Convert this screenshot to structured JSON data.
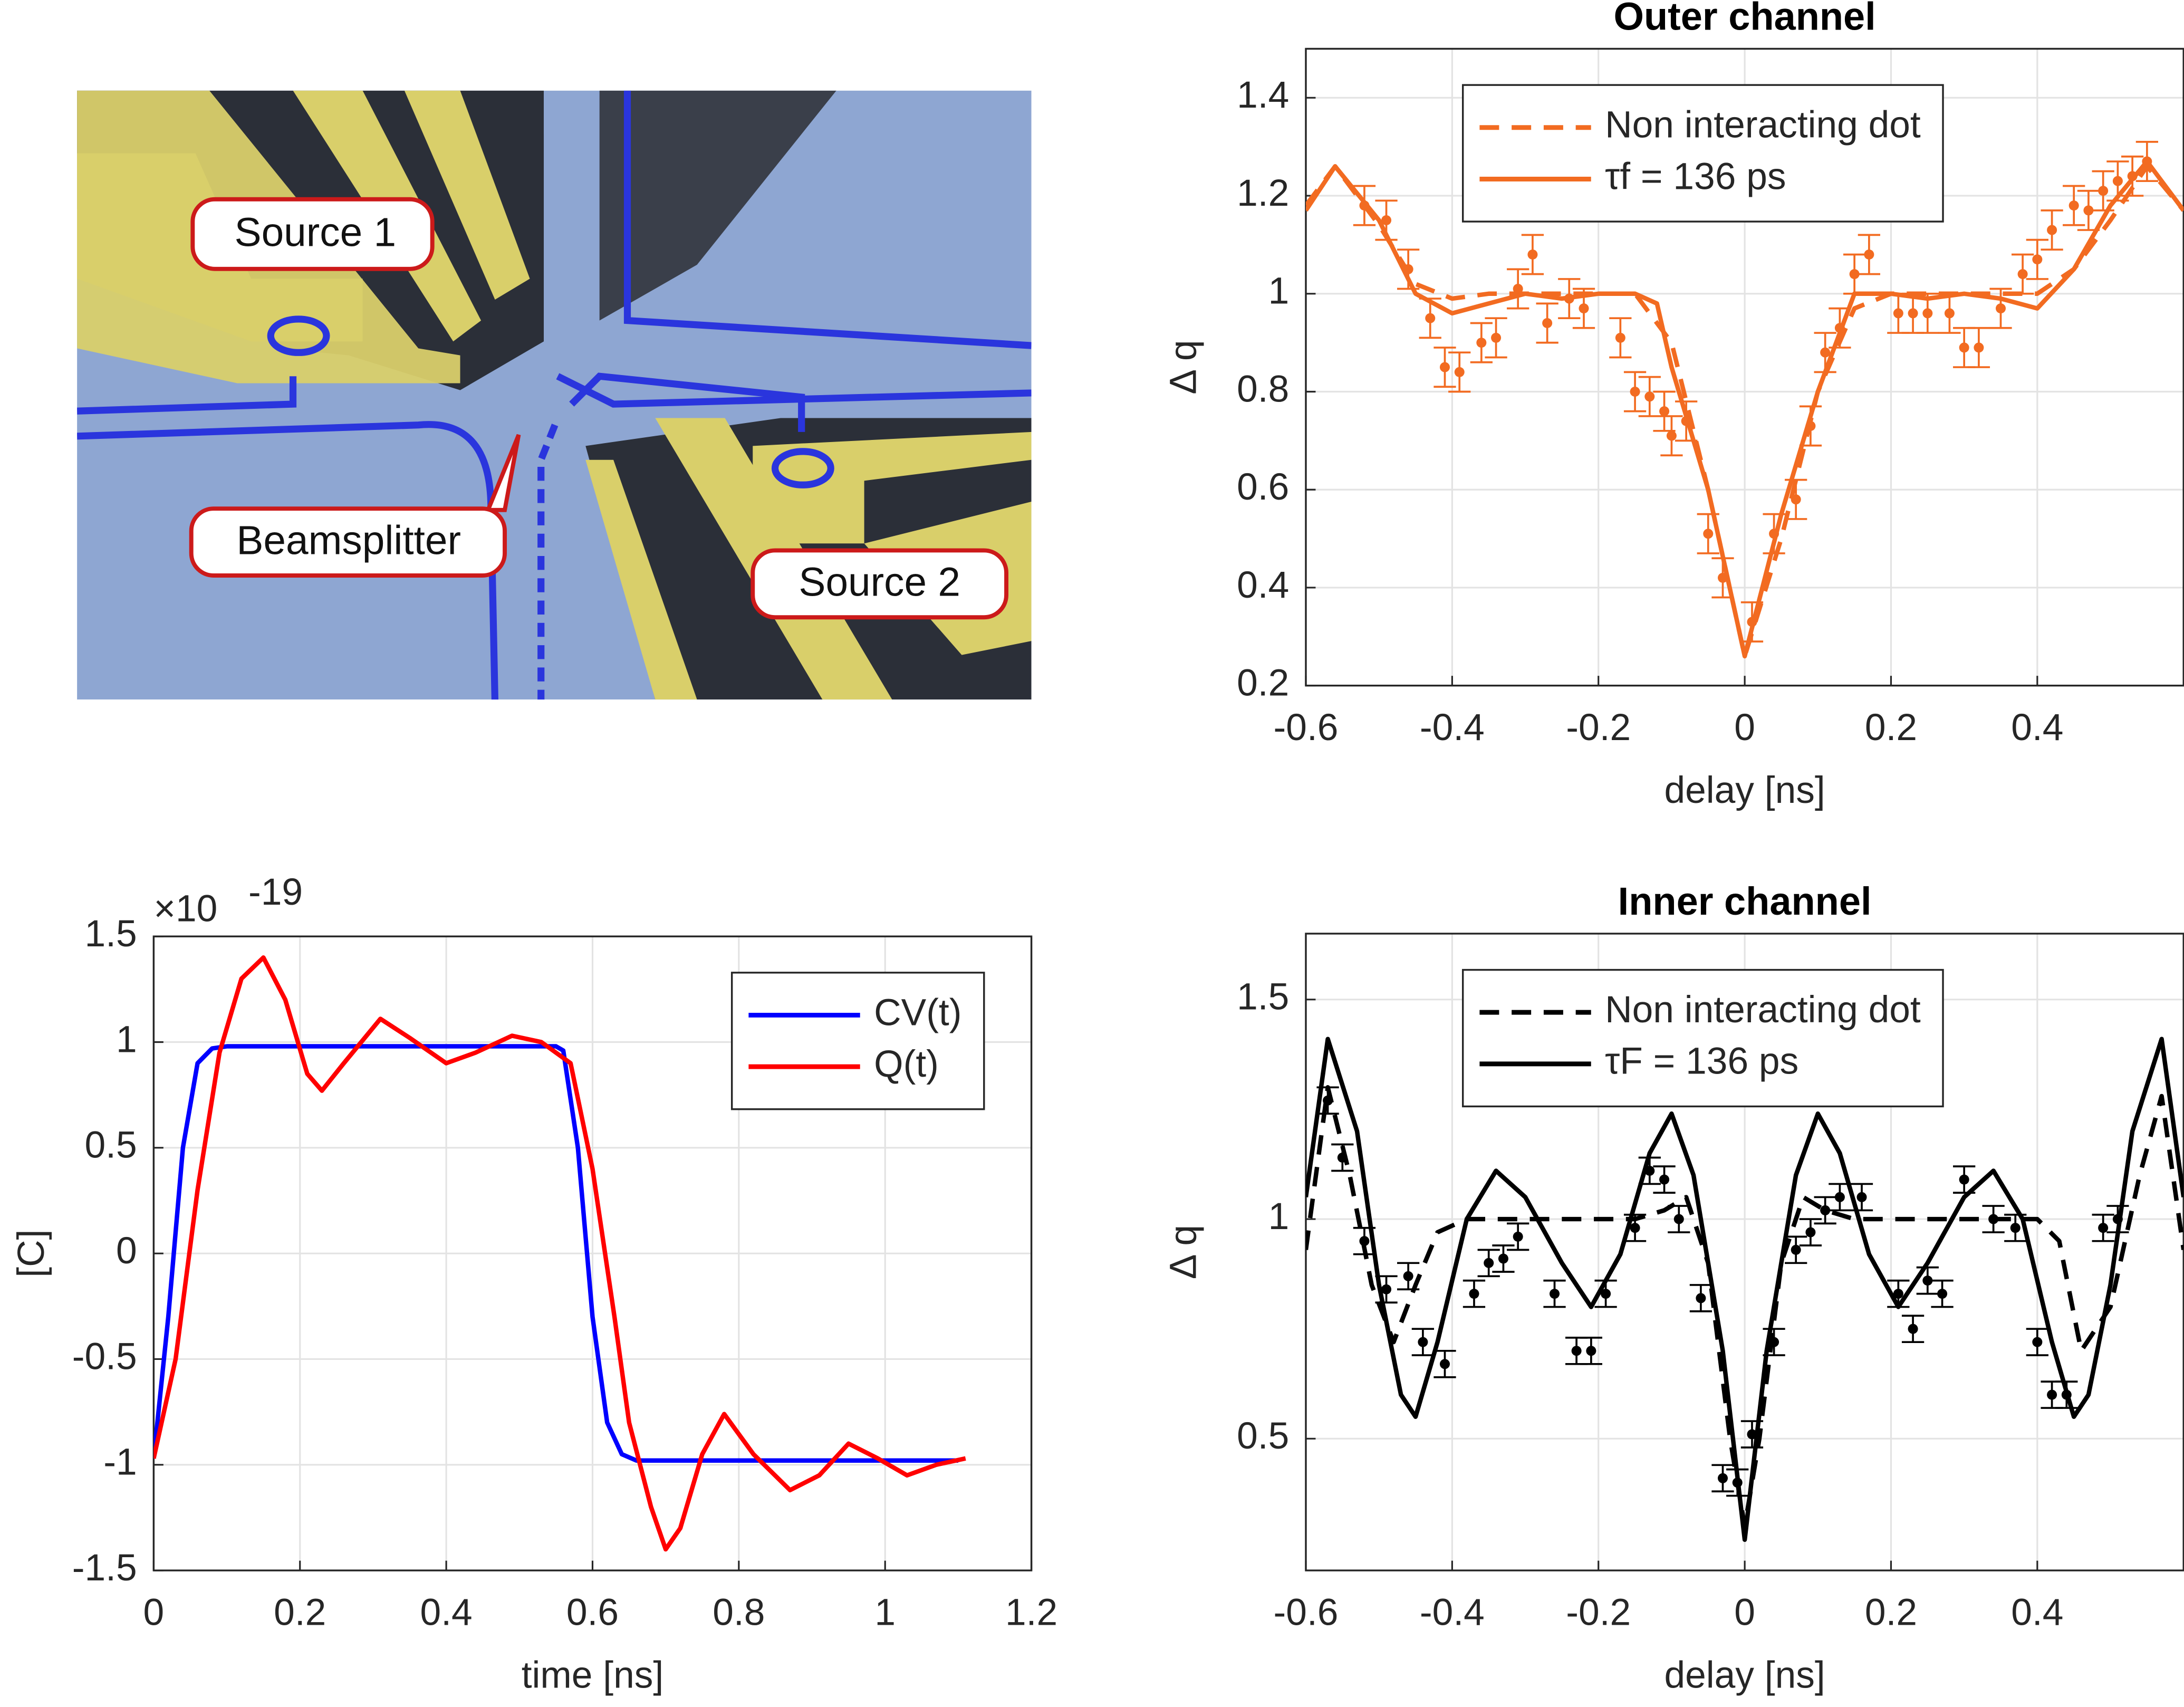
{
  "micrograph": {
    "labels": [
      "Source 1",
      "Beamsplitter",
      "Source 2"
    ]
  },
  "chart_data": [
    {
      "type": "line",
      "title": "Outer channel",
      "xlabel": "delay [ns]",
      "ylabel": "Δ q",
      "xlim": [
        -0.6,
        0.6
      ],
      "xticks": [
        -0.6,
        -0.4,
        -0.2,
        0,
        0.2,
        0.4
      ],
      "ylim": [
        0.2,
        1.5
      ],
      "yticks": [
        0.2,
        0.4,
        0.6,
        0.8,
        1,
        1.2,
        1.4
      ],
      "grid": true,
      "legend": "north",
      "series": [
        {
          "name": "Non interacting dot",
          "color": "#f26b21",
          "linestyle": "dashed",
          "x": [
            -0.6,
            -0.56,
            -0.5,
            -0.45,
            -0.4,
            -0.35,
            -0.3,
            -0.25,
            -0.2,
            -0.15,
            -0.1,
            -0.05,
            0,
            0.05,
            0.1,
            0.15,
            0.2,
            0.25,
            0.3,
            0.35,
            0.4,
            0.45,
            0.5,
            0.55,
            0.6
          ],
          "values": [
            1.18,
            1.26,
            1.14,
            1.02,
            0.99,
            1.0,
            1.0,
            1.0,
            1.0,
            1.0,
            0.9,
            0.6,
            0.26,
            0.5,
            0.8,
            0.97,
            1.0,
            1.0,
            1.0,
            1.0,
            1.0,
            1.05,
            1.15,
            1.26,
            1.17
          ]
        },
        {
          "name": "τf = 136 ps",
          "color": "#f26b21",
          "linestyle": "solid",
          "x": [
            -0.6,
            -0.56,
            -0.5,
            -0.45,
            -0.4,
            -0.35,
            -0.3,
            -0.25,
            -0.2,
            -0.15,
            -0.12,
            -0.1,
            -0.05,
            0,
            0.05,
            0.1,
            0.15,
            0.2,
            0.25,
            0.3,
            0.35,
            0.4,
            0.45,
            0.5,
            0.55,
            0.6
          ],
          "values": [
            1.17,
            1.26,
            1.15,
            1.0,
            0.96,
            0.98,
            1.0,
            0.99,
            1.0,
            1.0,
            0.98,
            0.85,
            0.6,
            0.26,
            0.55,
            0.8,
            1.0,
            1.0,
            0.99,
            1.0,
            0.99,
            0.97,
            1.05,
            1.18,
            1.27,
            1.17
          ]
        }
      ],
      "points": {
        "color": "#f26b21",
        "x": [
          -0.52,
          -0.49,
          -0.46,
          -0.43,
          -0.41,
          -0.39,
          -0.36,
          -0.34,
          -0.31,
          -0.29,
          -0.27,
          -0.24,
          -0.22,
          -0.17,
          -0.15,
          -0.13,
          -0.11,
          -0.1,
          -0.08,
          -0.05,
          -0.03,
          0.01,
          0.04,
          0.07,
          0.09,
          0.11,
          0.13,
          0.15,
          0.17,
          0.21,
          0.23,
          0.25,
          0.28,
          0.3,
          0.32,
          0.35,
          0.38,
          0.4,
          0.42,
          0.45,
          0.47,
          0.49,
          0.51,
          0.53,
          0.55
        ],
        "values": [
          1.18,
          1.15,
          1.05,
          0.95,
          0.85,
          0.84,
          0.9,
          0.91,
          1.01,
          1.08,
          0.94,
          0.99,
          0.97,
          0.91,
          0.8,
          0.79,
          0.76,
          0.71,
          0.74,
          0.51,
          0.42,
          0.33,
          0.51,
          0.58,
          0.73,
          0.88,
          0.93,
          1.04,
          1.08,
          0.96,
          0.96,
          0.96,
          0.96,
          0.89,
          0.89,
          0.97,
          1.04,
          1.07,
          1.13,
          1.18,
          1.17,
          1.21,
          1.23,
          1.24,
          1.27
        ],
        "errors": [
          0.04,
          0.04,
          0.04,
          0.04,
          0.04,
          0.04,
          0.04,
          0.04,
          0.04,
          0.04,
          0.04,
          0.04,
          0.04,
          0.04,
          0.04,
          0.04,
          0.04,
          0.04,
          0.04,
          0.04,
          0.04,
          0.04,
          0.04,
          0.04,
          0.04,
          0.04,
          0.04,
          0.04,
          0.04,
          0.04,
          0.04,
          0.04,
          0.04,
          0.04,
          0.04,
          0.04,
          0.04,
          0.04,
          0.04,
          0.04,
          0.04,
          0.04,
          0.04,
          0.04,
          0.04
        ]
      }
    },
    {
      "type": "line",
      "xlabel": "time [ns]",
      "ylabel": "[C]",
      "y_exponent": {
        "base": "×10",
        "power": "-19"
      },
      "xlim": [
        0,
        1.2
      ],
      "xticks": [
        0,
        0.2,
        0.4,
        0.6,
        0.8,
        1,
        1.2
      ],
      "ylim": [
        -1.5,
        1.5
      ],
      "yticks": [
        -1.5,
        -1,
        -0.5,
        0,
        0.5,
        1,
        1.5
      ],
      "grid": true,
      "legend": "northeast",
      "series": [
        {
          "name": "CV(t)",
          "color": "#0000ff",
          "linestyle": "solid",
          "x": [
            0,
            0.02,
            0.04,
            0.06,
            0.08,
            0.1,
            0.55,
            0.56,
            0.58,
            0.6,
            0.62,
            0.64,
            0.66,
            1.1
          ],
          "values": [
            -0.97,
            -0.3,
            0.5,
            0.9,
            0.97,
            0.98,
            0.98,
            0.96,
            0.5,
            -0.3,
            -0.8,
            -0.95,
            -0.98,
            -0.98
          ]
        },
        {
          "name": "Q(t)",
          "color": "#ff0000",
          "linestyle": "solid",
          "x": [
            0,
            0.03,
            0.06,
            0.09,
            0.12,
            0.15,
            0.18,
            0.21,
            0.23,
            0.26,
            0.31,
            0.35,
            0.4,
            0.44,
            0.49,
            0.53,
            0.57,
            0.6,
            0.63,
            0.65,
            0.68,
            0.7,
            0.72,
            0.75,
            0.78,
            0.82,
            0.87,
            0.91,
            0.95,
            0.99,
            1.03,
            1.07,
            1.11
          ],
          "values": [
            -0.97,
            -0.5,
            0.3,
            0.95,
            1.3,
            1.4,
            1.2,
            0.85,
            0.77,
            0.9,
            1.11,
            1.02,
            0.9,
            0.95,
            1.03,
            1.0,
            0.9,
            0.4,
            -0.3,
            -0.8,
            -1.2,
            -1.4,
            -1.3,
            -0.95,
            -0.76,
            -0.95,
            -1.12,
            -1.05,
            -0.9,
            -0.97,
            -1.05,
            -1.0,
            -0.97
          ]
        }
      ]
    },
    {
      "type": "line",
      "title": "Inner channel",
      "xlabel": "delay [ns]",
      "ylabel": "Δ q",
      "xlim": [
        -0.6,
        0.6
      ],
      "xticks": [
        -0.6,
        -0.4,
        -0.2,
        0,
        0.2,
        0.4
      ],
      "ylim": [
        0.2,
        1.65
      ],
      "yticks": [
        0.5,
        1,
        1.5
      ],
      "grid": true,
      "legend": "north",
      "series": [
        {
          "name": "Non interacting dot",
          "color": "#000000",
          "linestyle": "dashed",
          "x": [
            -0.6,
            -0.57,
            -0.54,
            -0.51,
            -0.48,
            -0.45,
            -0.42,
            -0.38,
            -0.3,
            -0.15,
            -0.11,
            -0.08,
            -0.05,
            -0.02,
            0,
            0.02,
            0.05,
            0.08,
            0.11,
            0.15,
            0.3,
            0.4,
            0.43,
            0.46,
            0.5,
            0.54,
            0.57,
            0.6
          ],
          "values": [
            0.93,
            1.3,
            1.1,
            0.85,
            0.72,
            0.85,
            0.97,
            1.0,
            1.0,
            1.0,
            1.02,
            1.05,
            0.9,
            0.5,
            0.3,
            0.5,
            0.9,
            1.05,
            1.02,
            1.0,
            1.0,
            1.0,
            0.95,
            0.7,
            0.8,
            1.1,
            1.28,
            0.93
          ]
        },
        {
          "name": "τF = 136 ps",
          "color": "#000000",
          "linestyle": "solid",
          "x": [
            -0.6,
            -0.57,
            -0.53,
            -0.5,
            -0.47,
            -0.45,
            -0.42,
            -0.38,
            -0.34,
            -0.3,
            -0.25,
            -0.21,
            -0.17,
            -0.13,
            -0.1,
            -0.07,
            -0.03,
            0,
            0.03,
            0.07,
            0.1,
            0.13,
            0.17,
            0.21,
            0.25,
            0.3,
            0.34,
            0.38,
            0.42,
            0.45,
            0.47,
            0.5,
            0.53,
            0.57,
            0.6
          ],
          "values": [
            1.05,
            1.41,
            1.2,
            0.85,
            0.6,
            0.55,
            0.72,
            1.0,
            1.11,
            1.05,
            0.9,
            0.8,
            0.92,
            1.15,
            1.24,
            1.1,
            0.7,
            0.27,
            0.7,
            1.1,
            1.24,
            1.15,
            0.92,
            0.8,
            0.9,
            1.05,
            1.11,
            1.0,
            0.72,
            0.55,
            0.6,
            0.85,
            1.2,
            1.41,
            1.05
          ]
        }
      ],
      "points": {
        "color": "#000000",
        "x": [
          -0.57,
          -0.55,
          -0.52,
          -0.49,
          -0.46,
          -0.44,
          -0.41,
          -0.37,
          -0.35,
          -0.33,
          -0.31,
          -0.26,
          -0.23,
          -0.21,
          -0.19,
          -0.15,
          -0.13,
          -0.11,
          -0.09,
          -0.06,
          -0.03,
          -0.01,
          0.01,
          0.04,
          0.07,
          0.09,
          0.11,
          0.13,
          0.16,
          0.21,
          0.23,
          0.25,
          0.27,
          0.3,
          0.34,
          0.37,
          0.4,
          0.42,
          0.44,
          0.49,
          0.51
        ],
        "values": [
          1.27,
          1.14,
          0.95,
          0.84,
          0.87,
          0.72,
          0.67,
          0.83,
          0.9,
          0.91,
          0.96,
          0.83,
          0.7,
          0.7,
          0.83,
          0.98,
          1.11,
          1.09,
          1.0,
          0.82,
          0.41,
          0.4,
          0.51,
          0.72,
          0.93,
          0.97,
          1.02,
          1.05,
          1.05,
          0.83,
          0.75,
          0.86,
          0.83,
          1.09,
          1.0,
          0.98,
          0.72,
          0.6,
          0.6,
          0.98,
          1.0
        ],
        "errors": [
          0.03,
          0.03,
          0.03,
          0.03,
          0.03,
          0.03,
          0.03,
          0.03,
          0.03,
          0.03,
          0.03,
          0.03,
          0.03,
          0.03,
          0.03,
          0.03,
          0.03,
          0.03,
          0.03,
          0.03,
          0.03,
          0.03,
          0.03,
          0.03,
          0.03,
          0.03,
          0.03,
          0.03,
          0.03,
          0.03,
          0.03,
          0.03,
          0.03,
          0.03,
          0.03,
          0.03,
          0.03,
          0.03,
          0.03,
          0.03,
          0.03
        ]
      }
    }
  ]
}
